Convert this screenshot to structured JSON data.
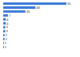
{
  "chart_data": {
    "type": "bar",
    "orientation": "horizontal",
    "categories": [
      null,
      null,
      null,
      null,
      null,
      null,
      null,
      null,
      null,
      null,
      null,
      null
    ],
    "values": [
      94,
      48,
      33,
      7,
      4,
      4,
      3,
      3,
      2,
      2,
      1,
      1
    ],
    "color": "#3b7dd8",
    "xlim": [
      0,
      100
    ],
    "grid": false,
    "tick_labels": false,
    "data_labels": true
  }
}
